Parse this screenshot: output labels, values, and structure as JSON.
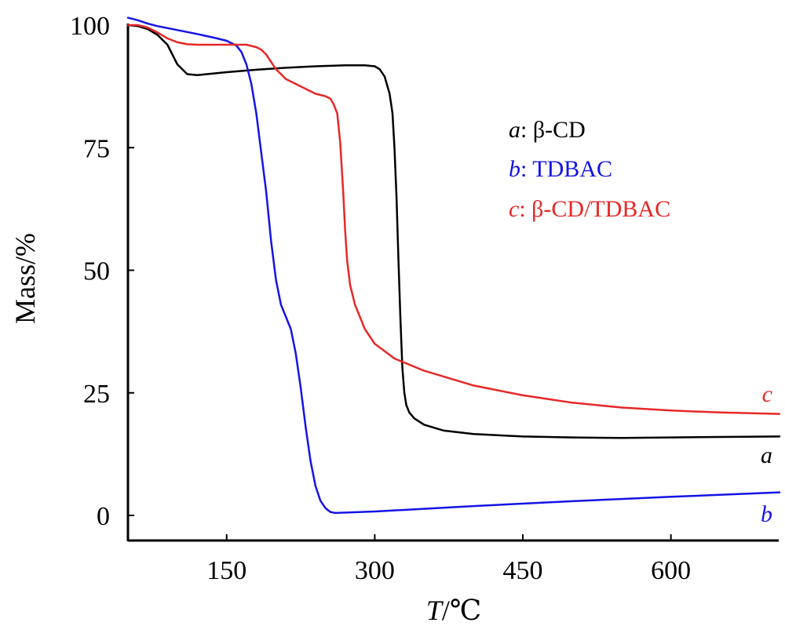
{
  "chart_data": {
    "type": "line",
    "xlabel_var": "T",
    "xlabel_unit": "/℃",
    "ylabel": "Mass/%",
    "xlim": [
      50,
      710
    ],
    "ylim": [
      -5,
      103
    ],
    "xticks": [
      150,
      300,
      450,
      600
    ],
    "yticks": [
      0,
      25,
      50,
      75,
      100
    ],
    "grid": false,
    "legend_position": "top-right",
    "series": [
      {
        "id": "a",
        "label_letter": "a",
        "label_name": "β-CD",
        "color": "#000000",
        "x": [
          50,
          60,
          70,
          80,
          90,
          100,
          110,
          120,
          130,
          150,
          180,
          210,
          240,
          270,
          290,
          300,
          305,
          310,
          315,
          318,
          320,
          322,
          324,
          326,
          328,
          330,
          332,
          335,
          340,
          350,
          370,
          400,
          450,
          500,
          550,
          600,
          650,
          710
        ],
        "y": [
          100,
          99.8,
          99.2,
          98,
          96,
          92,
          90,
          89.8,
          90,
          90.4,
          90.9,
          91.3,
          91.6,
          91.8,
          91.8,
          91.6,
          91,
          89.5,
          86,
          82,
          75,
          65,
          52,
          40,
          30,
          25,
          22.5,
          21,
          19.8,
          18.5,
          17.3,
          16.6,
          16.1,
          15.9,
          15.8,
          15.9,
          16,
          16.1
        ]
      },
      {
        "id": "b",
        "label_letter": "b",
        "label_name": "TDBAC",
        "color": "#1414e6",
        "x": [
          50,
          60,
          70,
          80,
          100,
          120,
          140,
          150,
          160,
          165,
          170,
          175,
          180,
          185,
          190,
          195,
          200,
          205,
          210,
          215,
          220,
          225,
          230,
          235,
          240,
          245,
          250,
          255,
          260,
          300,
          400,
          500,
          600,
          710
        ],
        "y": [
          101.5,
          101,
          100.3,
          99.8,
          99,
          98.2,
          97.3,
          96.8,
          95.8,
          94.5,
          92,
          88,
          82,
          74,
          66,
          56,
          48,
          43,
          40.5,
          38,
          33,
          26,
          18,
          11,
          6,
          3,
          1.5,
          0.7,
          0.5,
          0.8,
          1.9,
          2.9,
          3.8,
          4.7
        ]
      },
      {
        "id": "c",
        "label_letter": "c",
        "label_name": "β-CD/TDBAC",
        "color": "#e62828",
        "x": [
          50,
          60,
          70,
          80,
          90,
          100,
          110,
          120,
          130,
          150,
          170,
          180,
          185,
          190,
          195,
          200,
          210,
          220,
          230,
          240,
          250,
          255,
          258,
          262,
          265,
          268,
          270,
          272,
          275,
          280,
          290,
          300,
          320,
          350,
          400,
          450,
          500,
          550,
          600,
          650,
          710
        ],
        "y": [
          100,
          100,
          99.5,
          98.5,
          97.3,
          96.5,
          96.1,
          96,
          96,
          96,
          96,
          95.5,
          95,
          94,
          92.5,
          91,
          89,
          88,
          87,
          86,
          85.5,
          85,
          84,
          82,
          76,
          66,
          58,
          52,
          47,
          43,
          38,
          35,
          32,
          29.5,
          26.5,
          24.5,
          23,
          22,
          21.4,
          21,
          20.7
        ]
      }
    ]
  }
}
